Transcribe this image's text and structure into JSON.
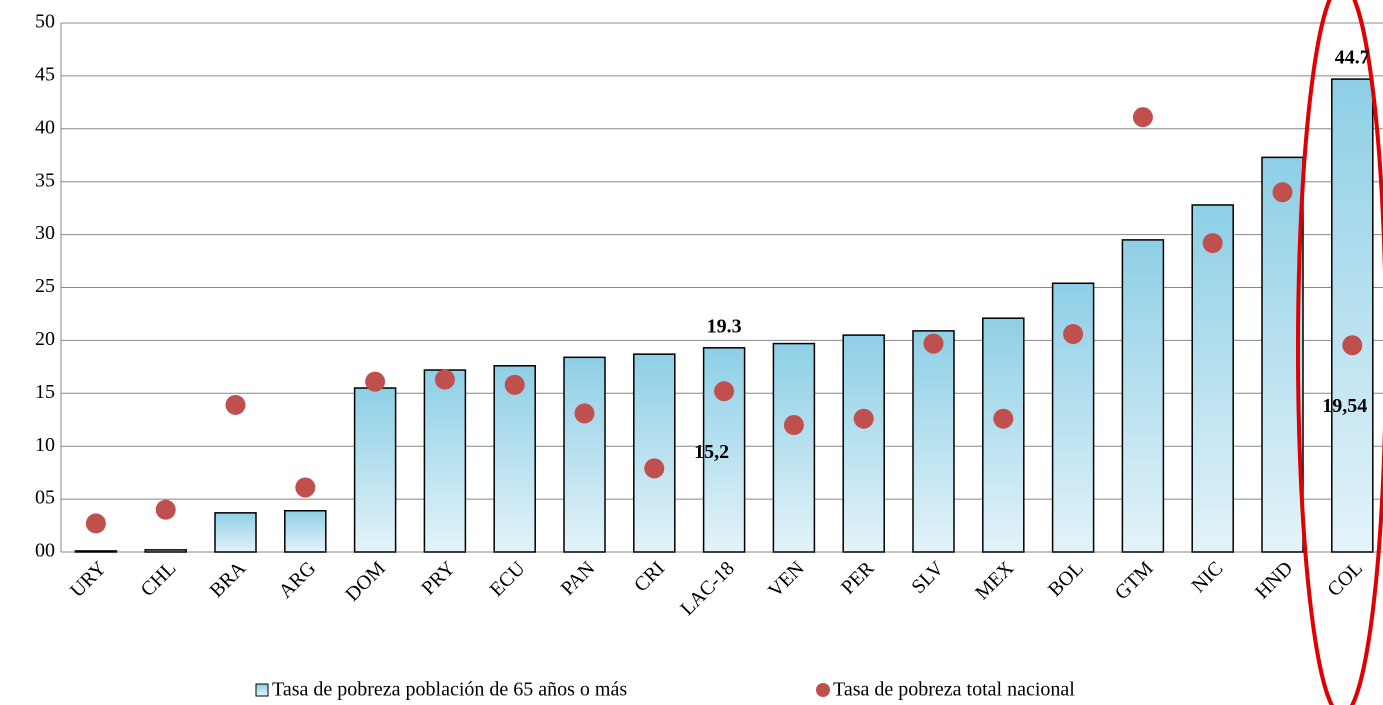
{
  "chart_data": {
    "type": "bar",
    "categories": [
      "URY",
      "CHL",
      "BRA",
      "ARG",
      "DOM",
      "PRY",
      "ECU",
      "PAN",
      "CRI",
      "LAC-18",
      "VEN",
      "PER",
      "SLV",
      "MEX",
      "BOL",
      "GTM",
      "NIC",
      "HND",
      "COL"
    ],
    "series": [
      {
        "name": "Tasa de pobreza población de 65 años o más",
        "type": "bar",
        "color": "#8ecfe6",
        "values": [
          0.1,
          0.2,
          3.7,
          3.9,
          15.5,
          17.2,
          17.6,
          18.4,
          18.7,
          19.3,
          19.7,
          20.5,
          20.9,
          22.1,
          25.4,
          29.5,
          32.8,
          37.3,
          44.7
        ],
        "value_labels": [
          null,
          null,
          null,
          null,
          null,
          null,
          null,
          null,
          null,
          "19.3",
          null,
          null,
          null,
          null,
          null,
          null,
          null,
          null,
          "44.7"
        ]
      },
      {
        "name": "Tasa de pobreza total nacional",
        "type": "scatter",
        "color": "#c0504d",
        "values": [
          2.7,
          4.0,
          13.9,
          6.1,
          16.1,
          16.3,
          15.8,
          13.1,
          7.9,
          15.2,
          12.0,
          12.6,
          19.7,
          12.6,
          20.6,
          41.1,
          29.2,
          34.0,
          19.54
        ],
        "value_labels": [
          null,
          null,
          null,
          null,
          null,
          null,
          null,
          null,
          null,
          "15,2",
          null,
          null,
          null,
          null,
          null,
          null,
          null,
          null,
          "19,54"
        ]
      }
    ],
    "ylim": [
      0,
      50
    ],
    "yticks": [
      {
        "value": 0,
        "label": "00"
      },
      {
        "value": 5,
        "label": "05"
      },
      10,
      15,
      20,
      25,
      30,
      35,
      40,
      45,
      50
    ],
    "grid": true
  }
}
